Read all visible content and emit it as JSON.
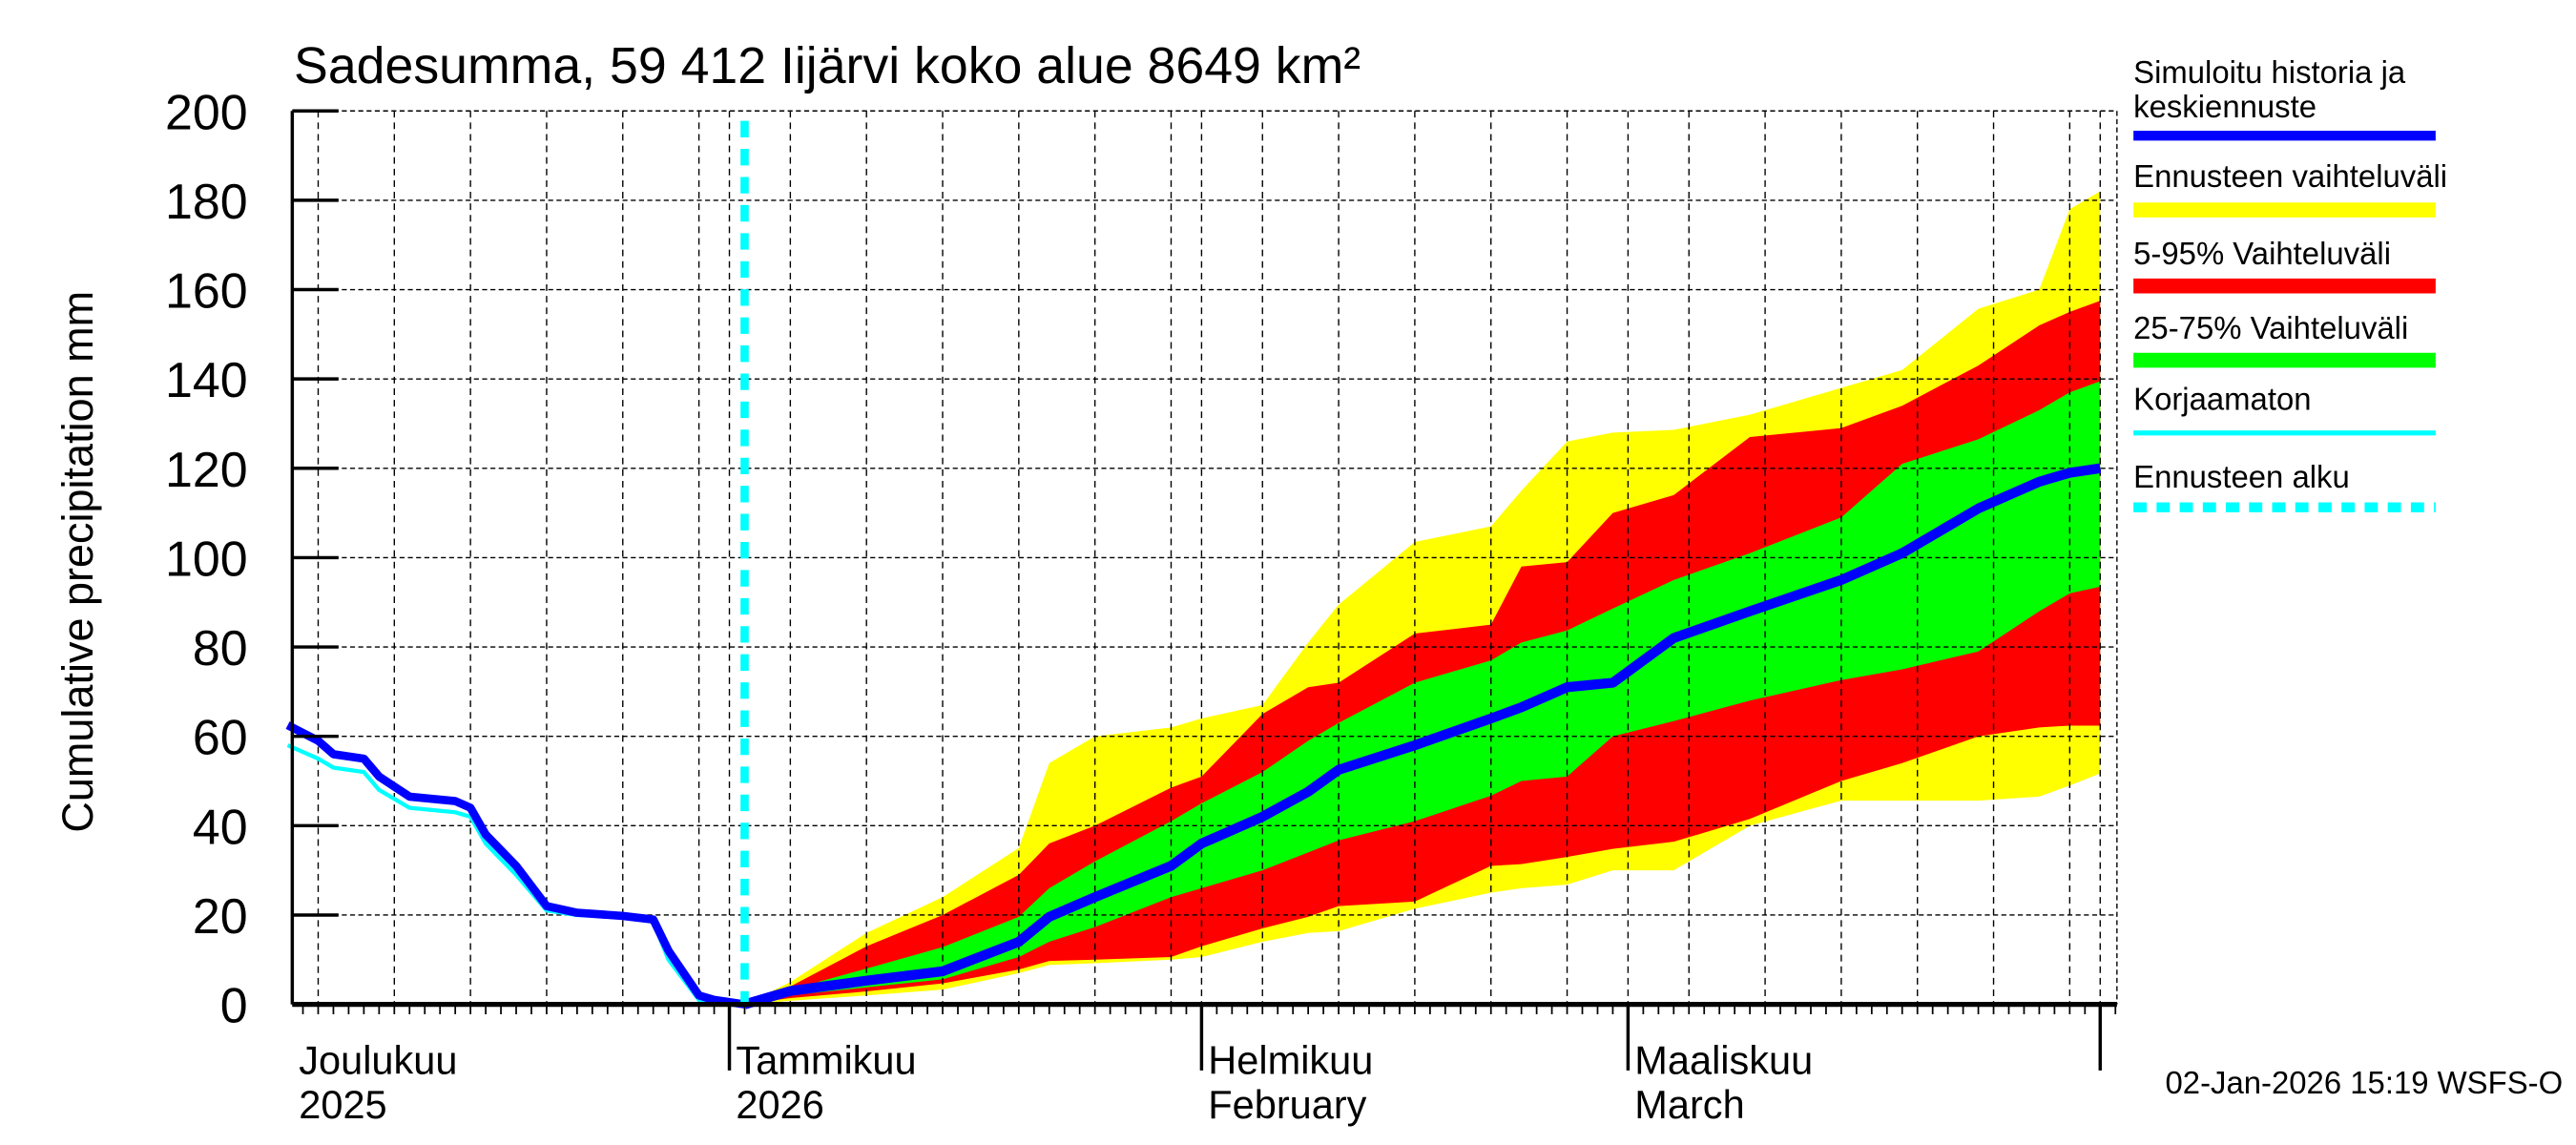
{
  "chart_data": {
    "type": "area",
    "title": "Sadesumma, 59 412 Iijärvi koko alue 8649 km²",
    "ylabel": "Cumulative precipitation   mm",
    "xlabel": "",
    "ylim": [
      0,
      200
    ],
    "yticks": [
      0,
      20,
      40,
      60,
      80,
      100,
      120,
      140,
      160,
      180,
      200
    ],
    "xlim": [
      "2025-12-03",
      "2026-04-02"
    ],
    "grid": true,
    "legend_position": "right",
    "x_month_labels": [
      {
        "date": "2025-12-01",
        "line1": "Joulukuu",
        "line2": "2025"
      },
      {
        "date": "2026-01-01",
        "line1": "Tammikuu",
        "line2": "2026"
      },
      {
        "date": "2026-02-01",
        "line1": "Helmikuu",
        "line2": "February"
      },
      {
        "date": "2026-03-01",
        "line1": "Maaliskuu",
        "line2": "March"
      }
    ],
    "forecast_start": "2026-01-02",
    "history": {
      "dates": [
        "2025-12-03",
        "2025-12-05",
        "2025-12-06",
        "2025-12-08",
        "2025-12-09",
        "2025-12-11",
        "2025-12-14",
        "2025-12-15",
        "2025-12-16",
        "2025-12-18",
        "2025-12-20",
        "2025-12-22",
        "2025-12-25",
        "2025-12-27",
        "2025-12-28",
        "2025-12-30",
        "2025-12-31",
        "2026-01-02"
      ],
      "simulated": [
        62.5,
        59,
        56,
        55,
        51,
        46.5,
        45.5,
        44,
        38,
        31,
        22,
        20.5,
        19.8,
        19,
        12,
        2,
        1,
        0
      ],
      "uncorrected": [
        58,
        55,
        53,
        52,
        48,
        44,
        43,
        42,
        36,
        29,
        21,
        20,
        19.5,
        18.5,
        10,
        1,
        0.5,
        0
      ]
    },
    "forecast": {
      "dates": [
        "2026-01-02",
        "2026-01-05",
        "2026-01-10",
        "2026-01-15",
        "2026-01-20",
        "2026-01-22",
        "2026-01-25",
        "2026-01-30",
        "2026-02-01",
        "2026-02-05",
        "2026-02-08",
        "2026-02-10",
        "2026-02-15",
        "2026-02-20",
        "2026-02-22",
        "2026-02-25",
        "2026-02-28",
        "2026-03-04",
        "2026-03-09",
        "2026-03-15",
        "2026-03-19",
        "2026-03-24",
        "2026-03-28",
        "2026-03-30",
        "2026-04-01"
      ],
      "max": [
        0,
        5,
        16,
        24,
        35,
        54,
        60,
        62,
        64,
        67,
        81,
        89.5,
        103.5,
        107,
        115,
        126,
        128,
        128.6,
        132,
        138,
        142,
        155.7,
        160,
        178,
        182
      ],
      "p95": [
        0,
        4,
        13,
        20,
        29,
        36,
        40,
        48.5,
        51,
        65,
        71,
        72,
        83,
        85,
        98,
        99,
        110,
        114,
        127,
        129,
        134,
        143,
        152,
        155,
        157.5
      ],
      "p75": [
        0,
        3.3,
        8,
        12.8,
        19.6,
        26,
        32,
        41,
        45,
        52,
        59,
        63,
        72,
        77,
        81,
        83.7,
        88.6,
        95,
        101,
        109,
        121,
        126.5,
        133,
        137,
        139.5
      ],
      "median": [
        0,
        3,
        5.3,
        7.4,
        14,
        19.6,
        24,
        31,
        36,
        42,
        47.6,
        52.5,
        58,
        64,
        66.5,
        71,
        72,
        82,
        88,
        95,
        101,
        111,
        117,
        119,
        120
      ],
      "p25": [
        0,
        2,
        3.8,
        5.6,
        10.6,
        14,
        17.3,
        24,
        26,
        30,
        34,
        36.7,
        41,
        46.7,
        50,
        51,
        60,
        63.4,
        68,
        72.6,
        75,
        79,
        88,
        92,
        93.5
      ],
      "p5": [
        0,
        1.4,
        2.9,
        4.7,
        7.8,
        9.7,
        10,
        10.6,
        13,
        17,
        19.6,
        22,
        23,
        31,
        31.4,
        33,
        34.8,
        36.4,
        41.5,
        50,
        54,
        60,
        62,
        62.4,
        62.4
      ],
      "min": [
        0,
        0.8,
        2,
        3.3,
        7,
        8.8,
        9.2,
        10,
        10.6,
        14,
        16,
        16.4,
        21.4,
        25,
        26,
        26.8,
        30,
        30,
        40,
        45.6,
        45.6,
        45.6,
        46.5,
        49,
        51.7
      ]
    },
    "legend": [
      {
        "line1": "Simuloitu historia ja",
        "line2": "keskiennuste",
        "color": "#0000ff",
        "style": "thick-line"
      },
      {
        "line1": "Ennusteen vaihteluväli",
        "color": "#ffff00",
        "style": "band"
      },
      {
        "line1": "5-95% Vaihteluväli",
        "color": "#ff0000",
        "style": "band"
      },
      {
        "line1": "25-75% Vaihteluväli",
        "color": "#00ff00",
        "style": "band"
      },
      {
        "line1": "Korjaamaton",
        "color": "#00ffff",
        "style": "thin-line"
      },
      {
        "line1": "Ennusteen alku",
        "color": "#00ffff",
        "style": "dashed-line"
      }
    ],
    "colors": {
      "range": "#ffff00",
      "p5_95": "#ff0000",
      "p25_75": "#00ff00",
      "median": "#0000ff",
      "uncorrected": "#00ffff",
      "forecast_start": "#00ffff"
    }
  },
  "footer": {
    "timestamp": "02-Jan-2026 15:19 WSFS-O"
  }
}
